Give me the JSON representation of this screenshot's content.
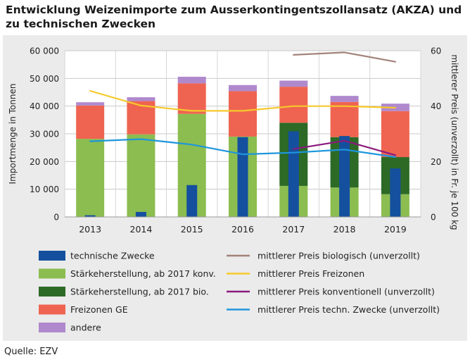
{
  "title_line1": "Entwicklung Weizenimporte zum Ausserkontingentszollansatz (AKZA) und",
  "title_line2": "zu technischen Zwecken",
  "source": "Quelle: EZV",
  "chart_data": {
    "type": "bar",
    "stacked": true,
    "categories": [
      "2013",
      "2014",
      "2015",
      "2016",
      "2017",
      "2018",
      "2019"
    ],
    "ylabel": "Importmenge in Tonnen",
    "ylabel2": "mittlerer Preis (unverzollt) in Fr. je 100 kg",
    "ylim": [
      0,
      60000
    ],
    "yticks": [
      0,
      10000,
      20000,
      30000,
      40000,
      50000,
      60000
    ],
    "ytick_labels": [
      "0",
      "10 000",
      "20 000",
      "30 000",
      "40 000",
      "50 000",
      "60 000"
    ],
    "y2lim": [
      0,
      60
    ],
    "y2ticks": [
      0,
      20,
      40,
      60
    ],
    "y2tick_labels": [
      "0",
      "20",
      "40",
      "60"
    ],
    "stack_series": [
      {
        "name": "Stärkeherstellung, ab 2017 konv.",
        "color": "#8cbd50",
        "values": [
          28200,
          29800,
          37200,
          29000,
          11200,
          10600,
          8200
        ]
      },
      {
        "name": "Stärkeherstellung, ab 2017 bio.",
        "color": "#2d6a26",
        "values": [
          0,
          0,
          0,
          0,
          22800,
          18200,
          13400
        ]
      },
      {
        "name": "Freizonen GE",
        "color": "#ef6450",
        "values": [
          12000,
          12000,
          11000,
          16400,
          13000,
          12700,
          16600
        ]
      },
      {
        "name": "andere",
        "color": "#b089cd",
        "values": [
          1200,
          1400,
          2400,
          2200,
          2200,
          2200,
          2700
        ]
      }
    ],
    "overlay_bar": {
      "name": "technische Zwecke",
      "color": "#14509e",
      "values": [
        600,
        1800,
        11500,
        28800,
        30900,
        29200,
        17500
      ]
    },
    "lines": [
      {
        "name": "mittlerer Preis biologisch (unverzollt)",
        "color": "#a3837b",
        "values": [
          null,
          null,
          null,
          null,
          58.5,
          59.4,
          56.0
        ]
      },
      {
        "name": "mittlerer Preis Freizonen",
        "color": "#f6c92c",
        "values": [
          45.5,
          40.2,
          38.3,
          38.3,
          40.0,
          40.0,
          39.4
        ]
      },
      {
        "name": "mittlerer Preis konventionell (unverzollt)",
        "color": "#8a1a7c",
        "values": [
          null,
          null,
          null,
          null,
          24.5,
          27.5,
          22.3
        ]
      },
      {
        "name": "mittlerer Preis techn. Zwecke (unverzollt)",
        "color": "#1e96dc",
        "values": [
          27.3,
          28.1,
          26.1,
          22.6,
          23.2,
          24.3,
          21.6
        ]
      }
    ],
    "legend_left": [
      "technische Zwecke",
      "Stärkeherstellung, ab 2017 konv.",
      "Stärkeherstellung, ab 2017 bio.",
      "Freizonen GE",
      "andere"
    ],
    "legend_right": [
      "mittlerer Preis biologisch (unverzollt)",
      "mittlerer Preis Freizonen",
      "mittlerer Preis konventionell (unverzollt)",
      "mittlerer Preis techn. Zwecke (unverzollt)"
    ]
  }
}
